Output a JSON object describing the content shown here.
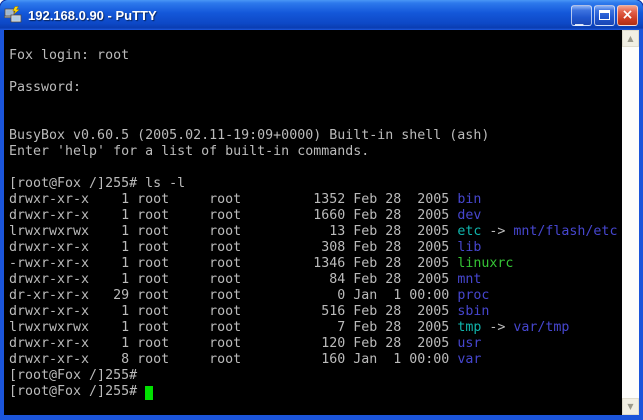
{
  "window": {
    "title": "192.168.0.90 - PuTTY",
    "controls": {
      "minimize_glyph": "_",
      "close_glyph": "×"
    },
    "scrollbar": {
      "up_glyph": "▲",
      "down_glyph": "▼"
    },
    "icons": {
      "app_icon": "putty-two-terminals-with-lightning",
      "minimize": "minimize-bar",
      "maximize": "maximize-square",
      "close": "close-x",
      "scroll_up": "arrow-up",
      "scroll_down": "arrow-down"
    },
    "titlebar_color": "#1458DA",
    "border_color": "#1B55DB",
    "close_button_color": "#CC3C22"
  },
  "terminal": {
    "palette": {
      "background": "#000000",
      "foreground": "#BBBBBB",
      "directory": "#4646CE",
      "symlink": "#10B4AC",
      "executable": "#35C435",
      "cursor": "#00E000"
    },
    "prompt": "[root@Fox /]255#",
    "lines": [
      {
        "segments": [
          {
            "t": "Fox login: root",
            "s": "fg"
          }
        ]
      },
      {
        "segments": []
      },
      {
        "segments": [
          {
            "t": "Password:",
            "s": "fg"
          }
        ]
      },
      {
        "segments": []
      },
      {
        "segments": []
      },
      {
        "segments": [
          {
            "t": "BusyBox v0.60.5 (2005.02.11-19:09+0000) Built-in shell (ash)",
            "s": "fg"
          }
        ]
      },
      {
        "segments": [
          {
            "t": "Enter 'help' for a list of built-in commands.",
            "s": "fg"
          }
        ]
      },
      {
        "segments": []
      },
      {
        "segments": [
          {
            "t": "[root@Fox /]255# ls -l",
            "s": "fg"
          }
        ]
      },
      {
        "segments": [
          {
            "t": "drwxr-xr-x    1 root     root         1352 Feb 28  2005 ",
            "s": "fg"
          },
          {
            "t": "bin",
            "s": "dir"
          }
        ]
      },
      {
        "segments": [
          {
            "t": "drwxr-xr-x    1 root     root         1660 Feb 28  2005 ",
            "s": "fg"
          },
          {
            "t": "dev",
            "s": "dir"
          }
        ]
      },
      {
        "segments": [
          {
            "t": "lrwxrwxrwx    1 root     root           13 Feb 28  2005 ",
            "s": "fg"
          },
          {
            "t": "etc",
            "s": "lnk"
          },
          {
            "t": " -> ",
            "s": "fg"
          },
          {
            "t": "mnt/flash/etc",
            "s": "dir"
          }
        ]
      },
      {
        "segments": [
          {
            "t": "drwxr-xr-x    1 root     root          308 Feb 28  2005 ",
            "s": "fg"
          },
          {
            "t": "lib",
            "s": "dir"
          }
        ]
      },
      {
        "segments": [
          {
            "t": "-rwxr-xr-x    1 root     root         1346 Feb 28  2005 ",
            "s": "fg"
          },
          {
            "t": "linuxrc",
            "s": "exe"
          }
        ]
      },
      {
        "segments": [
          {
            "t": "drwxr-xr-x    1 root     root           84 Feb 28  2005 ",
            "s": "fg"
          },
          {
            "t": "mnt",
            "s": "dir"
          }
        ]
      },
      {
        "segments": [
          {
            "t": "dr-xr-xr-x   29 root     root            0 Jan  1 00:00 ",
            "s": "fg"
          },
          {
            "t": "proc",
            "s": "dir"
          }
        ]
      },
      {
        "segments": [
          {
            "t": "drwxr-xr-x    1 root     root          516 Feb 28  2005 ",
            "s": "fg"
          },
          {
            "t": "sbin",
            "s": "dir"
          }
        ]
      },
      {
        "segments": [
          {
            "t": "lrwxrwxrwx    1 root     root            7 Feb 28  2005 ",
            "s": "fg"
          },
          {
            "t": "tmp",
            "s": "lnk"
          },
          {
            "t": " -> ",
            "s": "fg"
          },
          {
            "t": "var/tmp",
            "s": "dir"
          }
        ]
      },
      {
        "segments": [
          {
            "t": "drwxr-xr-x    1 root     root          120 Feb 28  2005 ",
            "s": "fg"
          },
          {
            "t": "usr",
            "s": "dir"
          }
        ]
      },
      {
        "segments": [
          {
            "t": "drwxr-xr-x    8 root     root          160 Jan  1 00:00 ",
            "s": "fg"
          },
          {
            "t": "var",
            "s": "dir"
          }
        ]
      },
      {
        "segments": [
          {
            "t": "[root@Fox /]255#",
            "s": "fg"
          }
        ]
      },
      {
        "segments": [
          {
            "t": "[root@Fox /]255# ",
            "s": "fg"
          }
        ],
        "cursor": true
      }
    ]
  }
}
